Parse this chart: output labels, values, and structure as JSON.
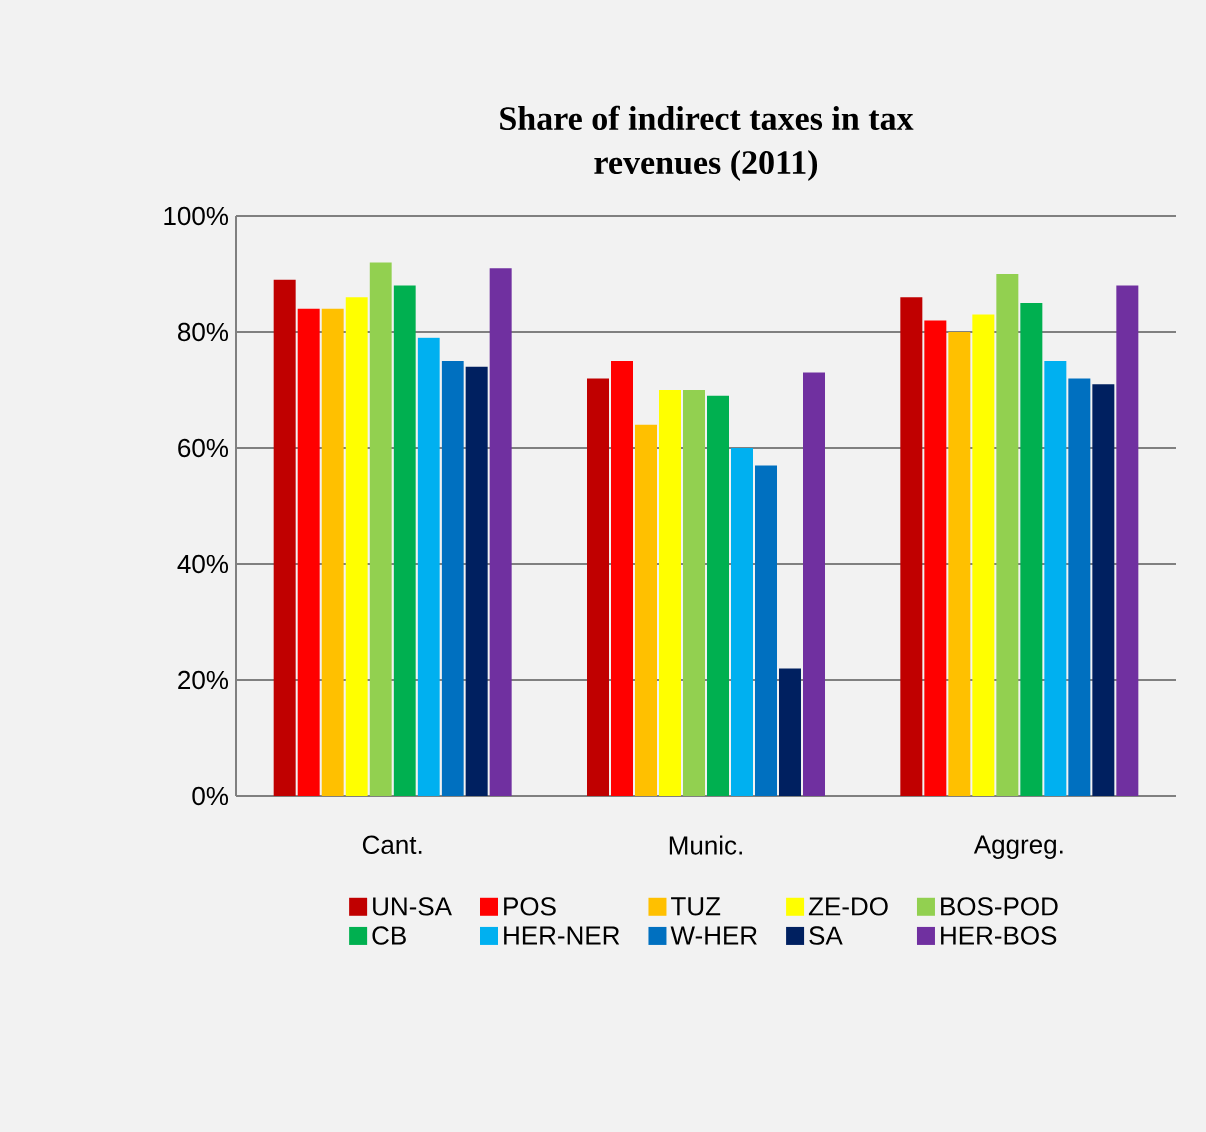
{
  "chart_data": {
    "type": "bar",
    "title": "Share of indirect taxes in tax revenues (2011)",
    "categories": [
      "Cant.",
      "Munic.",
      "Aggreg."
    ],
    "series": [
      {
        "name": "UN-SA",
        "color": "#c00000",
        "values": [
          89,
          72,
          86
        ]
      },
      {
        "name": "POS",
        "color": "#ff0000",
        "values": [
          84,
          75,
          82
        ]
      },
      {
        "name": "TUZ",
        "color": "#ffc000",
        "values": [
          84,
          64,
          80
        ]
      },
      {
        "name": "ZE-DO",
        "color": "#ffff00",
        "values": [
          86,
          70,
          83
        ]
      },
      {
        "name": "BOS-POD",
        "color": "#92d050",
        "values": [
          92,
          70,
          90
        ]
      },
      {
        "name": "CB",
        "color": "#00b050",
        "values": [
          88,
          69,
          85
        ]
      },
      {
        "name": "HER-NER",
        "color": "#00b0f0",
        "values": [
          79,
          60,
          75
        ]
      },
      {
        "name": "W-HER",
        "color": "#0070c0",
        "values": [
          75,
          57,
          72
        ]
      },
      {
        "name": "SA",
        "color": "#002060",
        "values": [
          74,
          22,
          71
        ]
      },
      {
        "name": "HER-BOS",
        "color": "#7030a0",
        "values": [
          91,
          73,
          88
        ]
      }
    ],
    "ylim": [
      0,
      100
    ],
    "yticks": [
      {
        "value": 0,
        "label": "0%"
      },
      {
        "value": 20,
        "label": "20%"
      },
      {
        "value": 40,
        "label": "40%"
      },
      {
        "value": 60,
        "label": "60%"
      },
      {
        "value": 80,
        "label": "80%"
      },
      {
        "value": 100,
        "label": "100%"
      }
    ],
    "grid": "y",
    "legend": "bottom"
  }
}
